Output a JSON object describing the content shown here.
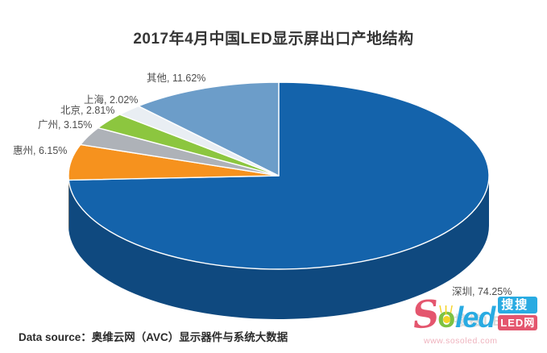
{
  "page": {
    "source_note": "Data source：奥维云网（AVC）显示器件与系统大数据"
  },
  "watermark": {
    "logo_s": "S",
    "logo_o": "o",
    "logo_led": "led",
    "rays": "\\ | /",
    "badge_search": "搜搜",
    "badge_led": "LED网",
    "url": "www.sosoled.com",
    "ghost": "搜搜LED网",
    "colors": {
      "red": "#e4566e",
      "green": "#7dc242",
      "blue": "#29abe2",
      "yellow": "#f5d327"
    }
  },
  "chart_data": {
    "type": "pie",
    "is_3d": true,
    "title": "2017年4月中国LED显示屏出口产地结构",
    "unit": "%",
    "start_angle_deg": 0,
    "direction": "clockwise",
    "legend_position": "none",
    "slices": [
      {
        "name": "深圳",
        "value": 74.25,
        "label": "深圳, 74.25%",
        "color": "#1463AB"
      },
      {
        "name": "惠州",
        "value": 6.15,
        "label": "惠州, 6.15%",
        "color": "#F6921E"
      },
      {
        "name": "广州",
        "value": 3.15,
        "label": "广州, 3.15%",
        "color": "#AEB2B8"
      },
      {
        "name": "北京",
        "value": 2.81,
        "label": "北京, 2.81%",
        "color": "#8CC63F"
      },
      {
        "name": "上海",
        "value": 2.02,
        "label": "上海, 2.02%",
        "color": "#E9EEF3"
      },
      {
        "name": "其他",
        "value": 11.62,
        "label": "其他, 11.62%",
        "color": "#6C9DC9"
      }
    ]
  }
}
